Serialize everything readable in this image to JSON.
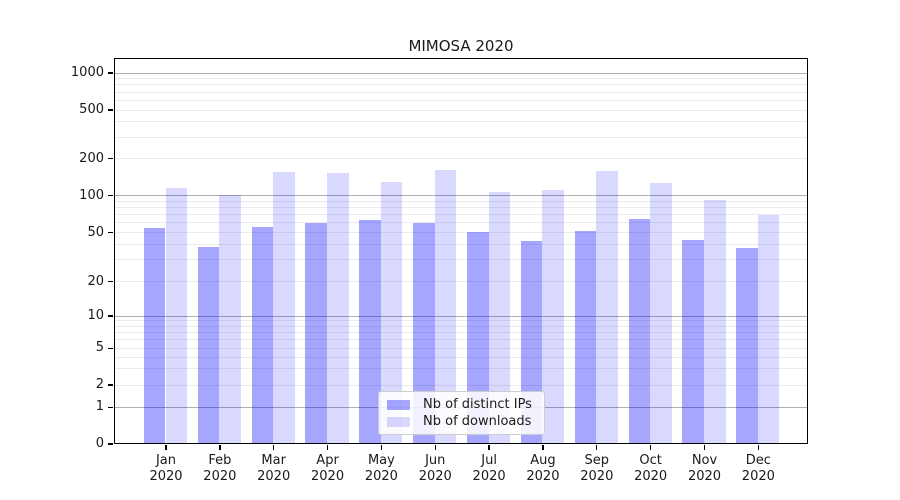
{
  "chart_data": {
    "type": "bar",
    "title": "MIMOSA 2020",
    "categories": [
      "Jan",
      "Feb",
      "Mar",
      "Apr",
      "May",
      "Jun",
      "Jul",
      "Aug",
      "Sep",
      "Oct",
      "Nov",
      "Dec"
    ],
    "year_label": "2020",
    "series": [
      {
        "name": "Nb of distinct IPs",
        "color": "#0000ff",
        "alpha": 0.35,
        "swatch_color": "#a5a5ee",
        "values": [
          54,
          38,
          55,
          59,
          63,
          59,
          50,
          42,
          51,
          64,
          43,
          37
        ]
      },
      {
        "name": "Nb of downloads",
        "color": "#0000ff",
        "alpha": 0.15,
        "swatch_color": "#d9d9f8",
        "values": [
          115,
          101,
          155,
          152,
          128,
          161,
          106,
          110,
          158,
          126,
          91,
          69
        ]
      }
    ],
    "xlabel": "",
    "ylabel": "",
    "y_scale": "symlog",
    "y_ticks": [
      0,
      1,
      2,
      5,
      10,
      20,
      50,
      100,
      200,
      500,
      1000
    ],
    "major_grid_values": [
      1,
      10,
      100,
      1000
    ],
    "ylim": [
      0,
      1320
    ],
    "grid": true,
    "legend_position": "lower center"
  },
  "colors": {
    "major_grid": "#b0b0b0",
    "minor_grid": "#ebebeb",
    "axis": "#000000",
    "text": "#1a1a1a"
  }
}
